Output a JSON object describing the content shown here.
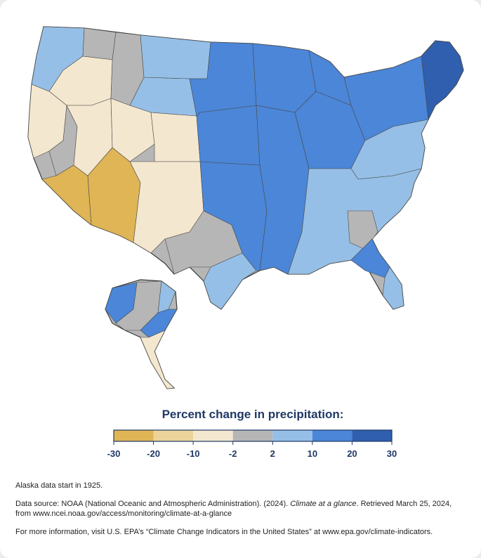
{
  "legend": {
    "title": "Percent change in precipitation:",
    "bins": [
      {
        "from": -30,
        "to": -20,
        "color": "#dfb555"
      },
      {
        "from": -20,
        "to": -10,
        "color": "#ecd39a"
      },
      {
        "from": -10,
        "to": -2,
        "color": "#f4e7cf"
      },
      {
        "from": -2,
        "to": 2,
        "color": "#b6b6b6"
      },
      {
        "from": 2,
        "to": 10,
        "color": "#95bfe6"
      },
      {
        "from": 10,
        "to": 20,
        "color": "#4b86d8"
      },
      {
        "from": 20,
        "to": 30,
        "color": "#2f5fae"
      }
    ],
    "tick_labels": [
      "-30",
      "-20",
      "-10",
      "-2",
      "2",
      "10",
      "20",
      "30"
    ]
  },
  "notes": {
    "alaska": "Alaska data start in 1925.",
    "source_prefix": "Data source: NOAA (National Oceanic and Atmospheric Administration). (2024). ",
    "source_title": "Climate at a glance",
    "source_suffix": ". Retrieved March 25, 2024,",
    "source_url_line": "from www.ncei.noaa.gov/access/monitoring/climate-at-a-glance",
    "more_info": "For more information, visit U.S. EPA’s “Climate Change Indicators in the United States” at www.epa.gov/climate-indicators."
  },
  "map_regions": [
    {
      "name": "pacific-northwest-coast",
      "change": 5
    },
    {
      "name": "washington-cascades",
      "change": 1
    },
    {
      "name": "oregon-east",
      "change": -5
    },
    {
      "name": "northern-rockies-idaho",
      "change": 0
    },
    {
      "name": "california-north-coast",
      "change": -4
    },
    {
      "name": "california-central",
      "change": 0
    },
    {
      "name": "southern-california",
      "change": -22
    },
    {
      "name": "great-basin-nevada",
      "change": -6
    },
    {
      "name": "arizona",
      "change": -23
    },
    {
      "name": "utah",
      "change": -8
    },
    {
      "name": "colorado",
      "change": -7
    },
    {
      "name": "new-mexico",
      "change": -6
    },
    {
      "name": "wyoming",
      "change": 4
    },
    {
      "name": "montana",
      "change": 4
    },
    {
      "name": "southwest-texas",
      "change": 0
    },
    {
      "name": "south-texas",
      "change": 6
    },
    {
      "name": "great-plains-north",
      "change": 14
    },
    {
      "name": "great-plains-central",
      "change": 15
    },
    {
      "name": "southern-plains",
      "change": 13
    },
    {
      "name": "upper-midwest",
      "change": 12
    },
    {
      "name": "mississippi-valley",
      "change": 15
    },
    {
      "name": "ohio-valley",
      "change": 12
    },
    {
      "name": "great-lakes",
      "change": 11
    },
    {
      "name": "northeast",
      "change": 14
    },
    {
      "name": "new-england-interior",
      "change": 22
    },
    {
      "name": "mid-atlantic",
      "change": 7
    },
    {
      "name": "southeast",
      "change": 5
    },
    {
      "name": "georgia-interior",
      "change": 0
    },
    {
      "name": "florida-north",
      "change": 12
    },
    {
      "name": "florida-south",
      "change": 5
    },
    {
      "name": "alaska-west",
      "change": 14
    },
    {
      "name": "alaska-interior",
      "change": 0
    },
    {
      "name": "alaska-north",
      "change": 6
    },
    {
      "name": "alaska-east",
      "change": 12
    },
    {
      "name": "alaska-panhandle",
      "change": -6
    }
  ]
}
